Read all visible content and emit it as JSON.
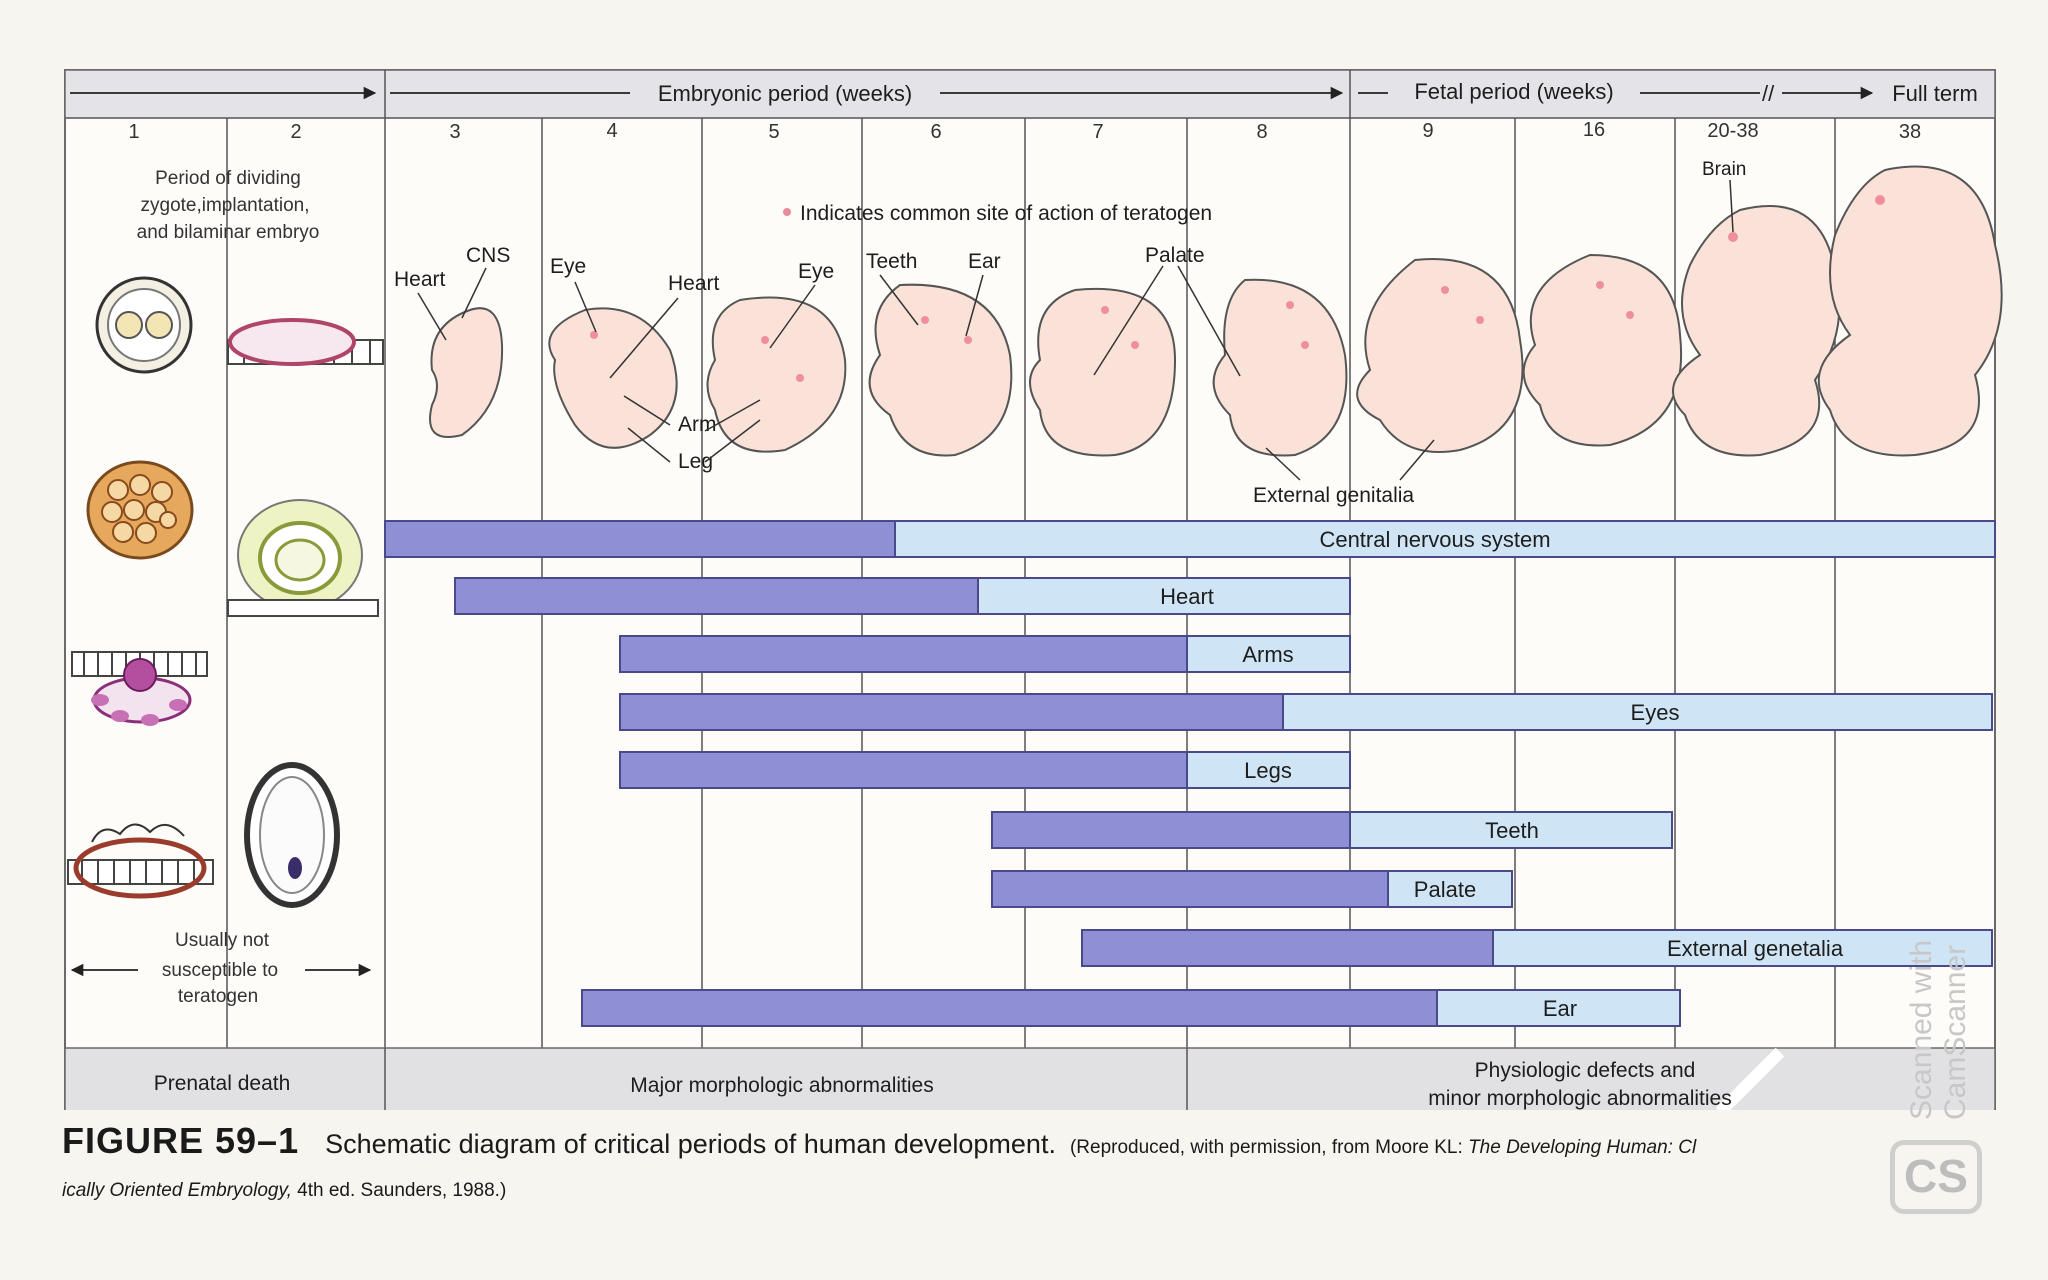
{
  "header": {
    "embryonic_period": "Embryonic period (weeks)",
    "fetal_period": "Fetal period (weeks)",
    "full_term": "Full term",
    "weeks": [
      "1",
      "2",
      "3",
      "4",
      "5",
      "6",
      "7",
      "8",
      "9",
      "16",
      "20-38",
      "38"
    ]
  },
  "early_period_label": [
    "Period of dividing",
    "zygote,implantation,",
    "and bilaminar embryo"
  ],
  "legend_note": "Indicates common site of action of teratogen",
  "embryo_labels": {
    "heart_w3": "Heart",
    "cns": "CNS",
    "eye_w4": "Eye",
    "heart_w5": "Heart",
    "eye_w5": "Eye",
    "teeth": "Teeth",
    "ear": "Ear",
    "palate": "Palate",
    "arm": "Arm",
    "leg": "Leg",
    "external_genitalia": "External genitalia",
    "brain": "Brain"
  },
  "not_susceptible": [
    "Usually not",
    "susceptible to",
    "teratogen"
  ],
  "chart_data": {
    "type": "table",
    "x_categories": [
      "1",
      "2",
      "3",
      "4",
      "5",
      "6",
      "7",
      "8",
      "9",
      "16",
      "20-38",
      "38"
    ],
    "rows": [
      {
        "organ": "Central nervous system",
        "highly_sensitive": [
          "3",
          "6"
        ],
        "less_sensitive": [
          "6",
          "38"
        ]
      },
      {
        "organ": "Heart",
        "highly_sensitive": [
          "3",
          "6"
        ],
        "less_sensitive": [
          "6",
          "8"
        ]
      },
      {
        "organ": "Arms",
        "highly_sensitive": [
          "4",
          "8"
        ],
        "less_sensitive": [
          "8",
          "9"
        ]
      },
      {
        "organ": "Eyes",
        "highly_sensitive": [
          "4",
          "8"
        ],
        "less_sensitive": [
          "8",
          "38"
        ]
      },
      {
        "organ": "Legs",
        "highly_sensitive": [
          "4",
          "8"
        ],
        "less_sensitive": [
          "8",
          "9"
        ]
      },
      {
        "organ": "Teeth",
        "highly_sensitive": [
          "6",
          "9"
        ],
        "less_sensitive": [
          "9",
          "20-38"
        ]
      },
      {
        "organ": "Palate",
        "highly_sensitive": [
          "6",
          "9"
        ],
        "less_sensitive": [
          "9",
          "16"
        ]
      },
      {
        "organ": "External genetalia",
        "highly_sensitive": [
          "7",
          "16"
        ],
        "less_sensitive": [
          "16",
          "38"
        ]
      },
      {
        "organ": "Ear",
        "highly_sensitive": [
          "4",
          "9"
        ],
        "less_sensitive": [
          "9",
          "20-38"
        ]
      }
    ]
  },
  "outcomes": {
    "prenatal_death": "Prenatal death",
    "major": "Major morphologic abnormalities",
    "physiologic_line1": "Physiologic defects and",
    "physiologic_line2": "minor morphologic abnormalities"
  },
  "caption": {
    "figure": "FIGURE 59–1",
    "text": "Schematic diagram of critical periods of human development.",
    "credit": "(Reproduced, with permission, from Moore KL: ",
    "book": "The Developing Human: Cl",
    "line2_italic": "ically Oriented Embryology,",
    "line2_rest": " 4th ed. Saunders, 1988.)"
  },
  "watermark": [
    "Scanned with",
    "CamScanner"
  ]
}
